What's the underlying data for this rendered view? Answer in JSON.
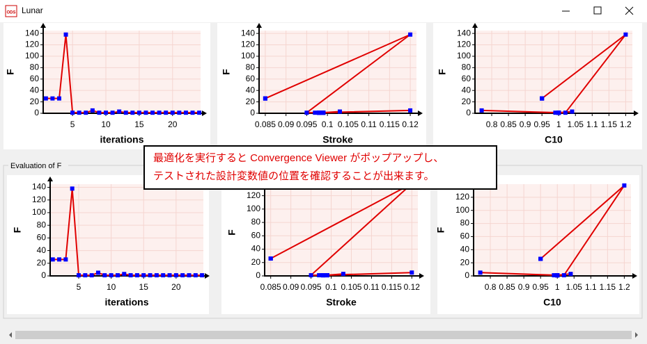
{
  "window": {
    "title": "Lunar",
    "icon": "ODS"
  },
  "group": {
    "title": "Evaluation of F"
  },
  "callout": {
    "lines": [
      "最適化を実行すると Convergence Viewer がポップアップし、",
      "テストされた設計変数値の位置を確認することが出来ます。"
    ]
  },
  "chart_data": [
    {
      "type": "line",
      "x_label": "iterations",
      "y_label": "F",
      "color": "#e00000",
      "marker_color": "#0000ff",
      "grid": true,
      "x": [
        1,
        2,
        3,
        4,
        5,
        6,
        7,
        8,
        9,
        10,
        11,
        12,
        13,
        14,
        15,
        16,
        17,
        18,
        19,
        20,
        21,
        22,
        23,
        24
      ],
      "values": [
        26,
        26,
        26,
        138,
        1,
        1,
        1,
        5,
        1,
        1,
        1,
        3,
        1,
        1,
        1,
        1,
        1,
        1,
        1,
        1,
        1,
        1,
        1,
        1
      ],
      "xlim": [
        0.6,
        24.2
      ],
      "ylim": [
        0,
        145
      ],
      "xticks": [
        5,
        10,
        15,
        20
      ],
      "yticks": [
        0,
        20,
        40,
        60,
        80,
        100,
        120,
        140
      ]
    },
    {
      "type": "line",
      "x_label": "Stroke",
      "y_label": "F",
      "color": "#e00000",
      "marker_color": "#0000ff",
      "grid": true,
      "x": [
        0.085,
        0.085,
        0.085,
        0.12,
        0.095,
        0.097,
        0.098,
        0.12,
        0.099,
        0.098,
        0.099,
        0.103,
        0.099,
        0.098,
        0.098,
        0.099,
        0.098,
        0.098,
        0.099,
        0.098,
        0.098,
        0.099,
        0.098,
        0.098
      ],
      "values": [
        26,
        26,
        26,
        138,
        1,
        1,
        1,
        5,
        1,
        1,
        1,
        3,
        1,
        1,
        1,
        1,
        1,
        1,
        1,
        1,
        1,
        1,
        1,
        1
      ],
      "xlim": [
        0.0835,
        0.1215
      ],
      "ylim": [
        0,
        145
      ],
      "xticks": [
        0.085,
        0.09,
        0.095,
        0.1,
        0.105,
        0.11,
        0.115,
        0.12
      ],
      "yticks": [
        0,
        20,
        40,
        60,
        80,
        100,
        120,
        140
      ]
    },
    {
      "type": "line",
      "x_label": "C10",
      "y_label": "F",
      "color": "#e00000",
      "marker_color": "#0000ff",
      "grid": true,
      "x": [
        0.95,
        0.95,
        0.95,
        1.2,
        1.02,
        1.0,
        0.99,
        0.77,
        1.0,
        1.0,
        1.0,
        1.04,
        1.0,
        1.0,
        1.0,
        1.0,
        1.0,
        1.0,
        1.0,
        1.0,
        1.0,
        1.0,
        1.0,
        1.0
      ],
      "values": [
        26,
        26,
        26,
        138,
        1,
        1,
        1,
        5,
        1,
        1,
        1,
        3,
        1,
        1,
        1,
        1,
        1,
        1,
        1,
        1,
        1,
        1,
        1,
        1
      ],
      "xlim": [
        0.75,
        1.22
      ],
      "ylim": [
        0,
        145
      ],
      "xticks": [
        0.8,
        0.85,
        0.9,
        0.95,
        1,
        1.05,
        1.1,
        1.15,
        1.2
      ],
      "yticks": [
        0,
        20,
        40,
        60,
        80,
        100,
        120,
        140
      ]
    },
    {
      "type": "line",
      "x_label": "iterations",
      "y_label": "F",
      "color": "#e00000",
      "marker_color": "#0000ff",
      "grid": true,
      "x": [
        1,
        2,
        3,
        4,
        5,
        6,
        7,
        8,
        9,
        10,
        11,
        12,
        13,
        14,
        15,
        16,
        17,
        18,
        19,
        20,
        21,
        22,
        23,
        24
      ],
      "values": [
        26,
        26,
        26,
        138,
        1,
        1,
        1,
        5,
        1,
        1,
        1,
        3,
        1,
        1,
        1,
        1,
        1,
        1,
        1,
        1,
        1,
        1,
        1,
        1
      ],
      "xlim": [
        0.6,
        24.2
      ],
      "ylim": [
        0,
        145
      ],
      "xticks": [
        5,
        10,
        15,
        20
      ],
      "yticks": [
        0,
        20,
        40,
        60,
        80,
        100,
        120,
        140
      ]
    },
    {
      "type": "line",
      "x_label": "Stroke",
      "y_label": "F",
      "color": "#e00000",
      "marker_color": "#0000ff",
      "grid": true,
      "x": [
        0.085,
        0.085,
        0.085,
        0.12,
        0.095,
        0.097,
        0.098,
        0.12,
        0.099,
        0.098,
        0.099,
        0.103,
        0.099,
        0.098,
        0.098,
        0.099,
        0.098,
        0.098,
        0.099,
        0.098,
        0.098,
        0.099,
        0.098,
        0.098
      ],
      "values": [
        26,
        26,
        26,
        138,
        1,
        1,
        1,
        5,
        1,
        1,
        1,
        3,
        1,
        1,
        1,
        1,
        1,
        1,
        1,
        1,
        1,
        1,
        1,
        1
      ],
      "xlim": [
        0.0835,
        0.1215
      ],
      "ylim": [
        0,
        130
      ],
      "xticks": [
        0.085,
        0.09,
        0.095,
        0.1,
        0.105,
        0.11,
        0.115,
        0.12
      ],
      "yticks": [
        0,
        20,
        40,
        60,
        80,
        100,
        120
      ]
    },
    {
      "type": "line",
      "x_label": "C10",
      "y_label": "F",
      "color": "#e00000",
      "marker_color": "#0000ff",
      "grid": true,
      "x": [
        0.95,
        0.95,
        0.95,
        1.2,
        1.02,
        1.0,
        0.99,
        0.77,
        1.0,
        1.0,
        1.0,
        1.04,
        1.0,
        1.0,
        1.0,
        1.0,
        1.0,
        1.0,
        1.0,
        1.0,
        1.0,
        1.0,
        1.0,
        1.0
      ],
      "values": [
        26,
        26,
        26,
        138,
        1,
        1,
        1,
        5,
        1,
        1,
        1,
        3,
        1,
        1,
        1,
        1,
        1,
        1,
        1,
        1,
        1,
        1,
        1,
        1
      ],
      "xlim": [
        0.75,
        1.22
      ],
      "ylim": [
        0,
        140
      ],
      "xticks": [
        0.8,
        0.85,
        0.9,
        0.95,
        1,
        1.05,
        1.1,
        1.15,
        1.2
      ],
      "yticks": [
        0,
        20,
        40,
        60,
        80,
        100,
        120
      ]
    }
  ]
}
